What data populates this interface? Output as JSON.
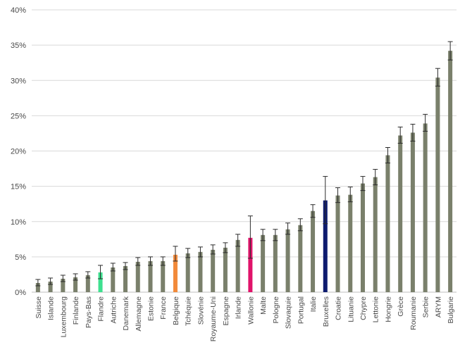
{
  "chart_data": {
    "type": "bar",
    "title": "",
    "xlabel": "",
    "ylabel": "",
    "ylim": [
      0,
      40
    ],
    "y_ticks": [
      "0%",
      "5%",
      "10%",
      "15%",
      "20%",
      "25%",
      "30%",
      "35%",
      "40%"
    ],
    "y_tick_values": [
      0,
      5,
      10,
      15,
      20,
      25,
      30,
      35,
      40
    ],
    "grid": "horizontal",
    "default_color": "#7a806b",
    "error_bar_color": "#2b2b2b",
    "categories": [
      "Suisse",
      "Islande",
      "Luxembourg",
      "Finlande",
      "Pays-Bas",
      "Flandre",
      "Autriche",
      "Danemark",
      "Allemagne",
      "Estonie",
      "France",
      "Belgique",
      "Tchéquie",
      "Slovénie",
      "Royaume-Uni",
      "Espagne",
      "Irlande",
      "Wallonie",
      "Malte",
      "Pologne",
      "Slovaquie",
      "Portugal",
      "Italie",
      "Bruxelles",
      "Croatie",
      "Lituanie",
      "Chypre",
      "Lettonie",
      "Hongrie",
      "Grèce",
      "Roumanie",
      "Serbie",
      "ARYM",
      "Bulgarie"
    ],
    "values": [
      1.3,
      1.5,
      1.9,
      2.1,
      2.4,
      2.8,
      3.5,
      3.7,
      4.3,
      4.4,
      4.4,
      5.3,
      5.5,
      5.7,
      6.0,
      6.3,
      7.4,
      7.7,
      8.1,
      8.1,
      8.9,
      9.5,
      11.5,
      13.0,
      13.7,
      13.8,
      15.4,
      16.3,
      19.4,
      22.2,
      22.6,
      23.9,
      30.4,
      34.2
    ],
    "error_low": [
      0.9,
      1.1,
      1.5,
      1.7,
      2.0,
      1.9,
      3.0,
      3.2,
      3.8,
      3.8,
      3.8,
      4.4,
      4.9,
      5.0,
      5.4,
      5.6,
      6.5,
      4.8,
      7.3,
      7.3,
      8.2,
      8.7,
      10.6,
      9.7,
      12.7,
      12.8,
      14.4,
      15.2,
      18.3,
      21.1,
      21.4,
      22.8,
      29.2,
      32.9
    ],
    "error_high": [
      1.8,
      2.0,
      2.4,
      2.6,
      2.9,
      3.8,
      4.1,
      4.2,
      4.9,
      5.0,
      5.0,
      6.5,
      6.2,
      6.4,
      6.7,
      7.0,
      8.2,
      10.8,
      8.9,
      8.9,
      9.8,
      10.4,
      12.4,
      16.4,
      14.8,
      14.9,
      16.4,
      17.4,
      20.5,
      23.4,
      23.8,
      25.2,
      31.7,
      35.5
    ],
    "highlights": {
      "Flandre": "#3ee08f",
      "Belgique": "#f28a3a",
      "Wallonie": "#e0136a",
      "Bruxelles": "#0d1b6e"
    }
  }
}
